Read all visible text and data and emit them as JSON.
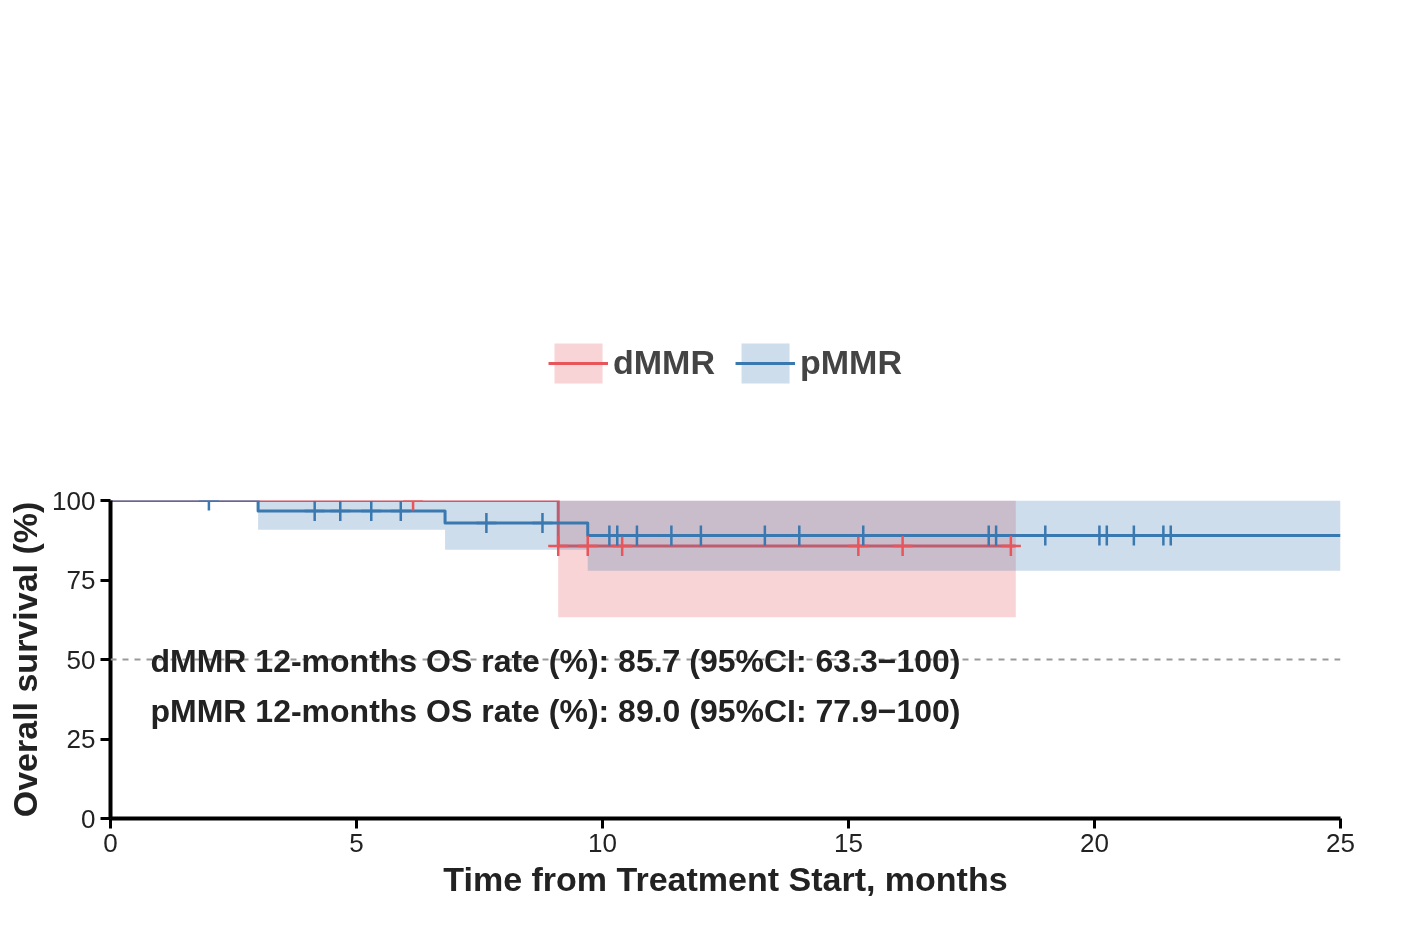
{
  "chart_data": {
    "type": "step",
    "xlabel": "Time from Treatment Start, months",
    "ylabel": "Overall survival (%)",
    "xlim": [
      0,
      25
    ],
    "ylim": [
      0,
      100
    ],
    "xticks": [
      0,
      5,
      10,
      15,
      20,
      25
    ],
    "yticks": [
      0,
      25,
      50,
      75,
      100
    ],
    "grid": false,
    "legend": "top",
    "line_style": "solid",
    "ref_lines": [
      {
        "axis": "y",
        "value": 50,
        "color": "#999999",
        "line_style": "dashed"
      }
    ],
    "annotations": [
      "dMMR 12-months OS rate (%): 85.7 (95%CI: 63.3−100)",
      "pMMR 12-months OS rate (%): 89.0 (95%CI: 77.9−100)"
    ],
    "series": [
      {
        "name": "dMMR",
        "color": "#e8555a",
        "x": [
          0,
          9.1,
          18.4
        ],
        "values": [
          100,
          85.7,
          85.7
        ],
        "lower": [
          100,
          63.3,
          63.3
        ],
        "upper": [
          100,
          100,
          100
        ]
      },
      {
        "name": "pMMR",
        "color": "#3a78b0",
        "x": [
          0,
          3.0,
          6.8,
          9.7,
          25
        ],
        "values": [
          100,
          96.7,
          92.9,
          89.0,
          89.0
        ],
        "lower": [
          100,
          90.8,
          84.5,
          77.9,
          77.9
        ],
        "upper": [
          100,
          100,
          100,
          100,
          100
        ]
      },
      {
        "type": "scatter",
        "marker": "cross",
        "color": "#e8555a",
        "x": [
          6.15,
          9.1,
          9.7,
          10.4,
          15.2,
          16.1,
          18.3
        ],
        "values": [
          100,
          85.7,
          85.7,
          85.7,
          85.7,
          85.7,
          85.7
        ]
      },
      {
        "type": "scatter",
        "marker": "cross",
        "color": "#3a78b0",
        "x": [
          2.0,
          4.15,
          4.67,
          5.3,
          5.9,
          7.64,
          8.78,
          10.14,
          10.3,
          10.7,
          11.4,
          12.0,
          13.3,
          14.0,
          15.3,
          17.85,
          18.0,
          19.0,
          20.1,
          20.25,
          20.8,
          21.4,
          21.55
        ],
        "values": [
          100,
          96.7,
          96.7,
          96.7,
          96.7,
          92.9,
          92.9,
          89.0,
          89.0,
          89.0,
          89.0,
          89.0,
          89.0,
          89.0,
          89.0,
          89.0,
          89.0,
          89.0,
          89.0,
          89.0,
          89.0,
          89.0,
          89.0
        ]
      }
    ]
  }
}
